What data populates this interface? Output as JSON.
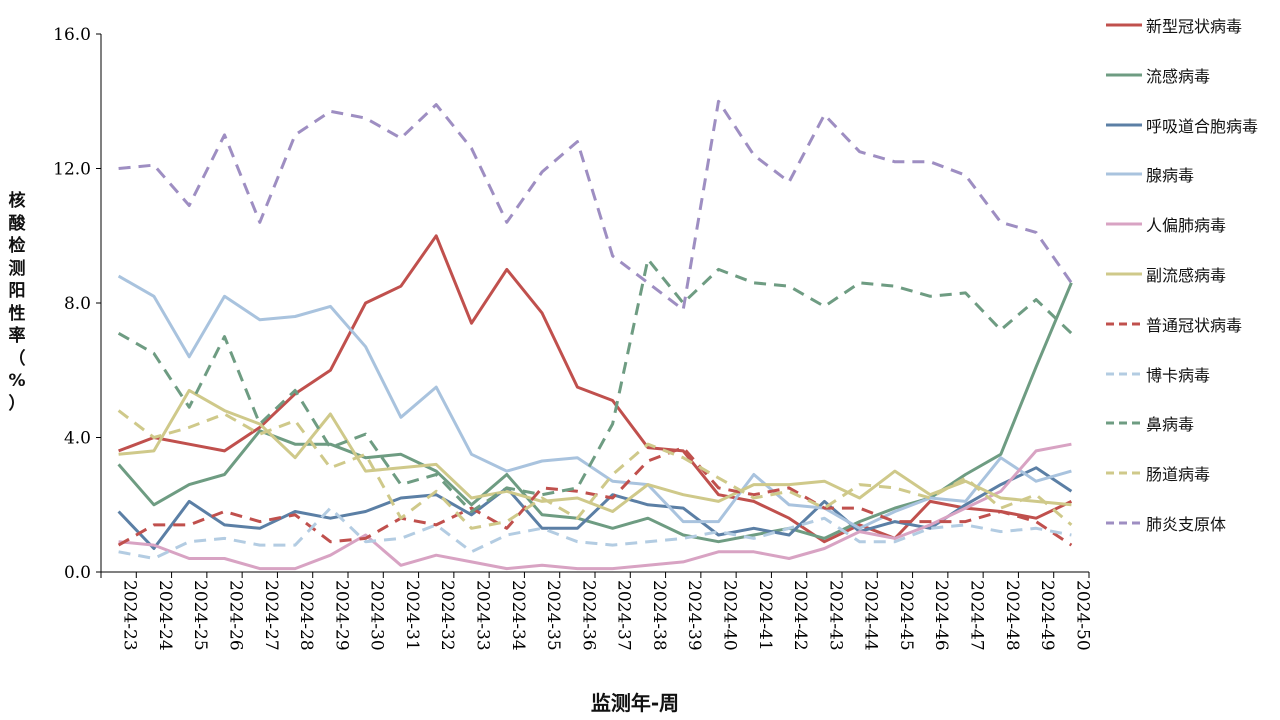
{
  "chart_data": {
    "type": "line",
    "xlabel": "监测年-周",
    "ylabel": "核酸检测阳性率（%）",
    "ylim": [
      0,
      16
    ],
    "yticks": [
      "0.0",
      "4.0",
      "8.0",
      "12.0",
      "16.0"
    ],
    "x": [
      "2024-23",
      "2024-24",
      "2024-25",
      "2024-26",
      "2024-27",
      "2024-28",
      "2024-29",
      "2024-30",
      "2024-31",
      "2024-32",
      "2024-33",
      "2024-34",
      "2024-35",
      "2024-36",
      "2024-37",
      "2024-38",
      "2024-39",
      "2024-40",
      "2024-41",
      "2024-42",
      "2024-43",
      "2024-44",
      "2024-45",
      "2024-46",
      "2024-47",
      "2024-48",
      "2024-49",
      "2024-50"
    ],
    "legend_position": "right",
    "grid": false,
    "series": [
      {
        "name": "新型冠状病毒",
        "color": "#C0504D",
        "dash": "solid",
        "values": [
          3.6,
          4.0,
          3.8,
          3.6,
          4.3,
          5.3,
          6.0,
          8.0,
          8.5,
          10.0,
          7.4,
          9.0,
          7.7,
          5.5,
          5.1,
          3.7,
          3.6,
          2.3,
          2.1,
          1.6,
          0.9,
          1.4,
          1.0,
          2.1,
          1.9,
          1.8,
          1.6,
          2.1
        ]
      },
      {
        "name": "流感病毒",
        "color": "#6E9C82",
        "dash": "solid",
        "values": [
          3.2,
          2.0,
          2.6,
          2.9,
          4.2,
          3.8,
          3.8,
          3.4,
          3.5,
          3.0,
          2.0,
          2.9,
          1.7,
          1.6,
          1.3,
          1.6,
          1.1,
          0.9,
          1.1,
          1.3,
          1.0,
          1.5,
          1.9,
          2.2,
          2.9,
          3.5,
          6.1,
          8.6
        ]
      },
      {
        "name": "呼吸道合胞病毒",
        "color": "#5B7FA5",
        "dash": "solid",
        "values": [
          1.8,
          0.7,
          2.1,
          1.4,
          1.3,
          1.8,
          1.6,
          1.8,
          2.2,
          2.3,
          1.7,
          2.5,
          1.3,
          1.3,
          2.3,
          2.0,
          1.9,
          1.1,
          1.3,
          1.1,
          2.1,
          1.2,
          1.5,
          1.3,
          2.0,
          2.6,
          3.1,
          2.4
        ]
      },
      {
        "name": "腺病毒",
        "color": "#A9C3DE",
        "dash": "solid",
        "values": [
          8.8,
          8.2,
          6.4,
          8.2,
          7.5,
          7.6,
          7.9,
          6.7,
          4.6,
          5.5,
          3.5,
          3.0,
          3.3,
          3.4,
          2.7,
          2.6,
          1.5,
          1.5,
          2.9,
          2.0,
          1.9,
          1.3,
          1.8,
          2.2,
          2.1,
          3.4,
          2.7,
          3.0
        ]
      },
      {
        "name": "人偏肺病毒",
        "color": "#D8A3C3",
        "dash": "solid",
        "values": [
          0.9,
          0.8,
          0.4,
          0.4,
          0.1,
          0.1,
          0.5,
          1.1,
          0.2,
          0.5,
          0.3,
          0.1,
          0.2,
          0.1,
          0.1,
          0.2,
          0.3,
          0.6,
          0.6,
          0.4,
          0.7,
          1.2,
          1.0,
          1.4,
          1.9,
          2.4,
          3.6,
          3.8
        ]
      },
      {
        "name": "副流感病毒",
        "color": "#CFC98A",
        "dash": "solid",
        "values": [
          3.5,
          3.6,
          5.4,
          4.8,
          4.4,
          3.4,
          4.7,
          3.0,
          3.1,
          3.2,
          2.2,
          2.4,
          2.1,
          2.2,
          1.8,
          2.6,
          2.3,
          2.1,
          2.6,
          2.6,
          2.7,
          2.2,
          3.0,
          2.3,
          2.7,
          2.2,
          2.1,
          2.0
        ]
      },
      {
        "name": "普通冠状病毒",
        "color": "#C0504D",
        "dash": "dashed",
        "values": [
          0.8,
          1.4,
          1.4,
          1.8,
          1.5,
          1.7,
          0.9,
          1.0,
          1.6,
          1.4,
          1.9,
          1.3,
          2.5,
          2.4,
          2.2,
          3.3,
          3.7,
          2.5,
          2.3,
          2.5,
          1.9,
          1.9,
          1.5,
          1.5,
          1.5,
          1.8,
          1.5,
          0.8
        ]
      },
      {
        "name": "博卡病毒",
        "color": "#B3CCE2",
        "dash": "dashed",
        "values": [
          0.6,
          0.4,
          0.9,
          1.0,
          0.8,
          0.8,
          1.9,
          0.9,
          1.0,
          1.4,
          0.6,
          1.1,
          1.3,
          0.9,
          0.8,
          0.9,
          1.0,
          1.2,
          1.0,
          1.3,
          1.6,
          0.9,
          0.9,
          1.3,
          1.4,
          1.2,
          1.3,
          1.1
        ]
      },
      {
        "name": "鼻病毒",
        "color": "#6E9C82",
        "dash": "dashed",
        "values": [
          7.1,
          6.5,
          4.9,
          7.0,
          4.4,
          5.4,
          3.7,
          4.1,
          2.6,
          2.9,
          1.8,
          2.5,
          2.3,
          2.5,
          4.4,
          9.3,
          8.0,
          9.0,
          8.6,
          8.5,
          7.9,
          8.6,
          8.5,
          8.2,
          8.3,
          7.2,
          8.1,
          7.1
        ]
      },
      {
        "name": "肠道病毒",
        "color": "#CFC98A",
        "dash": "dashed",
        "values": [
          4.8,
          4.0,
          4.3,
          4.7,
          4.1,
          4.5,
          3.1,
          3.5,
          1.6,
          2.4,
          1.3,
          1.5,
          2.2,
          1.6,
          2.9,
          3.8,
          3.4,
          2.8,
          2.2,
          2.4,
          1.9,
          2.6,
          2.5,
          2.2,
          2.8,
          1.9,
          2.3,
          1.4
        ]
      },
      {
        "name": "肺炎支原体",
        "color": "#9E8EC2",
        "dash": "dashed",
        "values": [
          12.0,
          12.1,
          10.9,
          13.0,
          10.4,
          13.0,
          13.7,
          13.5,
          12.9,
          13.9,
          12.6,
          10.4,
          11.9,
          12.8,
          9.4,
          8.6,
          7.8,
          14.0,
          12.4,
          11.6,
          13.6,
          12.5,
          12.2,
          12.2,
          11.8,
          10.4,
          10.1,
          8.6
        ]
      }
    ]
  }
}
